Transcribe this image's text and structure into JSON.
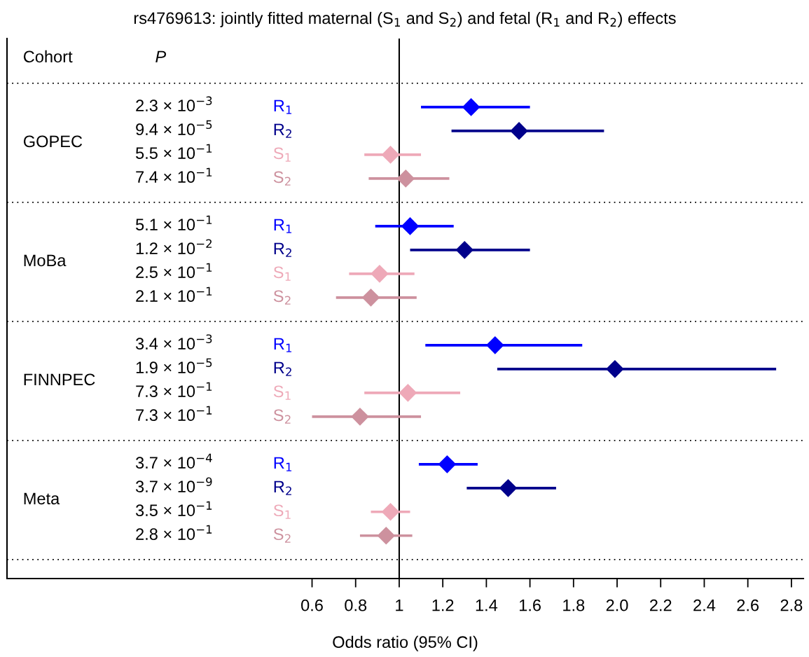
{
  "chart_data": {
    "type": "scatter",
    "orientation": "horizontal",
    "title": "rs4769613: jointly fitted maternal (S$_{1}$ and S$_{2}$) and fetal (R$_{1}$ and R$_{2}$) effects",
    "xlabel": "Odds ratio (95% CI)",
    "categories": [
      null,
      "2.3 × 10$^{−3}$",
      "9.4 × 10$^{−5}$",
      "5.5 × 10$^{−1}$",
      "7.4 × 10$^{−1}$",
      null,
      "5.1 × 10$^{−1}$",
      "1.2 × 10$^{−2}$",
      "2.5 × 10$^{−1}$",
      "2.1 × 10$^{−1}$",
      null,
      "3.4 × 10$^{−3}$",
      "1.9 × 10$^{−5}$",
      "7.3 × 10$^{−1}$",
      "7.3 × 10$^{−1}$",
      null,
      "3.7 × 10$^{−4}$",
      "3.7 × 10$^{−9}$",
      "3.5 × 10$^{−1}$",
      "2.8 × 10$^{−1}$",
      null
    ],
    "series": [
      {
        "name": "R$_{1}$",
        "color": "#0000ff",
        "values": [
          null,
          1.33,
          null,
          null,
          null,
          null,
          1.05,
          null,
          null,
          null,
          null,
          1.44,
          null,
          null,
          null,
          null,
          1.22,
          null,
          null,
          null,
          null
        ],
        "errors": [
          null,
          [
            1.1,
            1.6
          ],
          null,
          null,
          null,
          null,
          [
            0.89,
            1.25
          ],
          null,
          null,
          null,
          null,
          [
            1.12,
            1.84
          ],
          null,
          null,
          null,
          null,
          [
            1.09,
            1.36
          ],
          null,
          null,
          null,
          null
        ]
      },
      {
        "name": "R$_{2}$",
        "color": "#00008b",
        "values": [
          null,
          null,
          1.55,
          null,
          null,
          null,
          null,
          1.3,
          null,
          null,
          null,
          null,
          1.99,
          null,
          null,
          null,
          null,
          1.5,
          null,
          null,
          null
        ],
        "errors": [
          null,
          null,
          [
            1.24,
            1.94
          ],
          null,
          null,
          null,
          null,
          [
            1.05,
            1.6
          ],
          null,
          null,
          null,
          null,
          [
            1.45,
            2.73
          ],
          null,
          null,
          null,
          null,
          [
            1.31,
            1.72
          ],
          null,
          null,
          null
        ]
      },
      {
        "name": "S$_{1}$",
        "color": "#eea9b8",
        "values": [
          null,
          null,
          null,
          0.96,
          null,
          null,
          null,
          null,
          0.91,
          null,
          null,
          null,
          null,
          1.04,
          null,
          null,
          null,
          null,
          0.96,
          null,
          null
        ],
        "errors": [
          null,
          null,
          null,
          [
            0.84,
            1.1
          ],
          null,
          null,
          null,
          null,
          [
            0.77,
            1.07
          ],
          null,
          null,
          null,
          null,
          [
            0.84,
            1.28
          ],
          null,
          null,
          null,
          null,
          [
            0.87,
            1.05
          ],
          null,
          null
        ]
      },
      {
        "name": "S$_{2}$",
        "color": "#cd919e",
        "values": [
          null,
          null,
          null,
          null,
          1.03,
          null,
          null,
          null,
          null,
          0.87,
          null,
          null,
          null,
          null,
          0.82,
          null,
          null,
          null,
          null,
          0.94,
          null
        ],
        "errors": [
          null,
          null,
          null,
          null,
          [
            0.86,
            1.23
          ],
          null,
          null,
          null,
          null,
          [
            0.71,
            1.08
          ],
          null,
          null,
          null,
          null,
          [
            0.6,
            1.1
          ],
          null,
          null,
          null,
          null,
          [
            0.82,
            1.06
          ],
          null
        ]
      }
    ],
    "xlim": [
      -0.8,
      2.855
    ],
    "xticks": [
      0.6,
      0.8,
      1,
      1.2,
      1.4,
      1.6,
      1.8,
      {
        "value": 2,
        "label": "2.0"
      },
      2.2,
      2.4,
      2.6,
      2.8
    ],
    "ref_lines": [
      {
        "axis": "x",
        "value": 1,
        "color": "#000000",
        "line_style": "solid"
      }
    ],
    "annotations": [
      "Cohort",
      "P",
      "GOPEC",
      "MoBa",
      "FINNPEC",
      "Meta"
    ],
    "marker": "diamond",
    "grid": false,
    "legend": false
  }
}
